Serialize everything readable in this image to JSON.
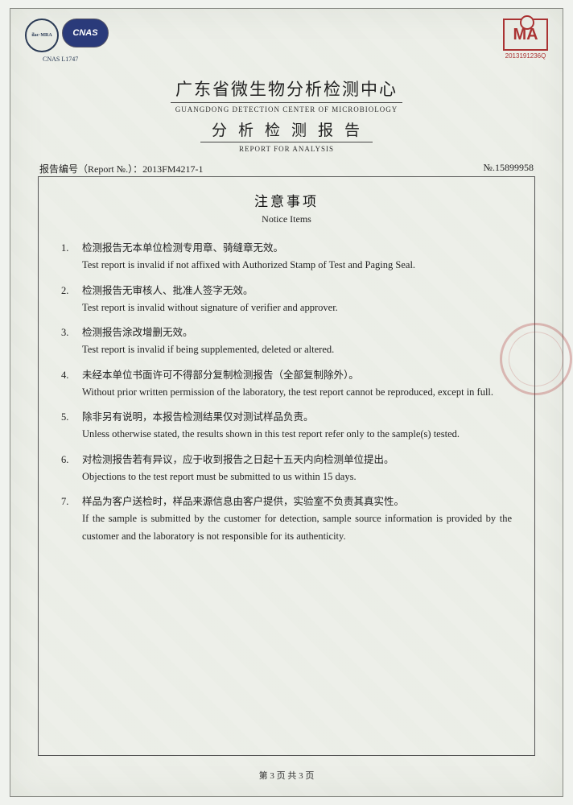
{
  "logos": {
    "ilac_text": "ilac·MRA",
    "cnas_text": "CNAS",
    "cnas_sub": "CNAS L1747",
    "ma_text": "MA",
    "ma_sub": "2013191236Q"
  },
  "header": {
    "title_cn": "广东省微生物分析检测中心",
    "title_en": "GUANGDONG  DETECTION  CENTER  OF  MICROBIOLOGY",
    "subtitle_cn": "分析检测报告",
    "subtitle_en": "REPORT  FOR  ANALYSIS"
  },
  "report": {
    "label": "报告编号（Report №.）：",
    "number": "2013FM4217-1",
    "serial_label": "№.",
    "serial": "15899958"
  },
  "notice": {
    "title_cn": "注意事项",
    "title_en": "Notice Items"
  },
  "items": [
    {
      "num": "1.",
      "cn": "检测报告无本单位检测专用章、骑缝章无效。",
      "en": "Test report is invalid if not affixed with Authorized Stamp of Test and Paging Seal."
    },
    {
      "num": "2.",
      "cn": "检测报告无审核人、批准人签字无效。",
      "en": "Test report is invalid without signature of verifier and approver."
    },
    {
      "num": "3.",
      "cn": "检测报告涂改增删无效。",
      "en": "Test report is invalid if being supplemented, deleted or altered."
    },
    {
      "num": "4.",
      "cn": "未经本单位书面许可不得部分复制检测报告（全部复制除外）。",
      "en": "Without prior written permission of the laboratory, the test report cannot be reproduced, except in full."
    },
    {
      "num": "5.",
      "cn": "除非另有说明，本报告检测结果仅对测试样品负责。",
      "en": "Unless otherwise stated, the results shown in this test report refer only to the sample(s) tested."
    },
    {
      "num": "6.",
      "cn": "对检测报告若有异议，应于收到报告之日起十五天内向检测单位提出。",
      "en": "Objections to the test report must be submitted to us within 15 days."
    },
    {
      "num": "7.",
      "cn": "样品为客户送检时，样品来源信息由客户提供，实验室不负责其真实性。",
      "en": "If the sample is submitted by the customer for detection, sample source information is provided by the customer and the laboratory is not responsible for its authenticity."
    }
  ],
  "footer": "第 3 页 共 3 页",
  "colors": {
    "page_bg": "#eef0ea",
    "border": "#555555",
    "text": "#222222",
    "accent_blue": "#2a3a7a",
    "accent_red": "#a33333"
  }
}
